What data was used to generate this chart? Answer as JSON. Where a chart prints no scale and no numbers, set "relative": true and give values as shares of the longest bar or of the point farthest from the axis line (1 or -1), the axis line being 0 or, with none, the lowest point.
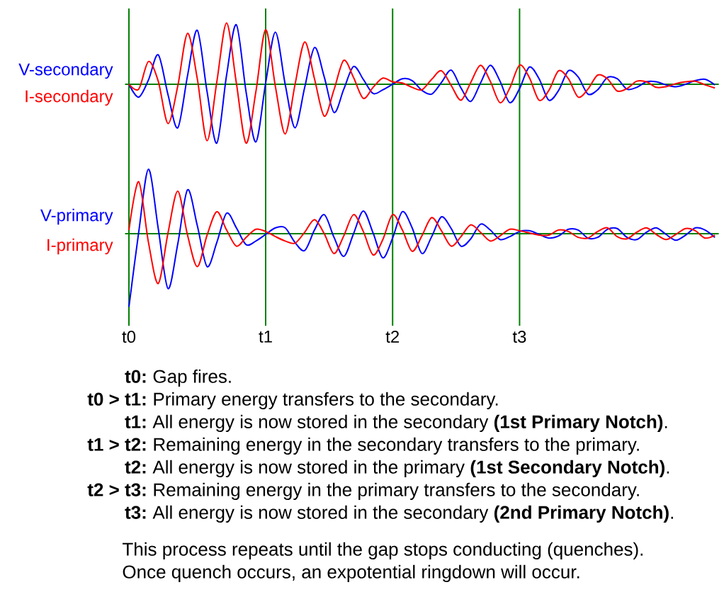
{
  "chart_data": [
    {
      "type": "line",
      "relative": true,
      "tick_labels": false,
      "categories": [
        "t0",
        null,
        null,
        null,
        null,
        null,
        null,
        null,
        null,
        null,
        null,
        null,
        null,
        null,
        "t1",
        null,
        null,
        null,
        null,
        null,
        null,
        null,
        null,
        null,
        null,
        null,
        null,
        "t2",
        null,
        null,
        null,
        null,
        null,
        null,
        null,
        null,
        null,
        null,
        null,
        null,
        "t3",
        null,
        null,
        null,
        null,
        null,
        null,
        null,
        null,
        null,
        null,
        null,
        null,
        null,
        null,
        null,
        null,
        null,
        null,
        null,
        null
      ],
      "series": [
        {
          "name": "V-secondary",
          "color": "#0000ff",
          "values": [
            0,
            -0.21,
            0.07,
            0.48,
            -0.17,
            -0.71,
            0.14,
            0.88,
            -0.12,
            -0.96,
            0.15,
            0.97,
            -0.13,
            -0.94,
            0.02,
            0.85,
            0.0,
            -0.71,
            -0.05,
            0.6,
            0.12,
            -0.46,
            -0.08,
            0.29,
            0.08,
            -0.15,
            -0.09,
            0.0,
            0.09,
            0.06,
            -0.1,
            -0.16,
            0.03,
            0.23,
            -0.06,
            -0.28,
            0.02,
            0.31,
            0.05,
            -0.3,
            -0.07,
            0.28,
            0.09,
            -0.26,
            -0.1,
            0.22,
            0.12,
            -0.16,
            -0.09,
            0.11,
            0.09,
            -0.08,
            -0.05,
            0.04,
            0.04,
            -0.01,
            -0.04,
            0.0,
            0.06,
            0.08,
            -0.01
          ]
        },
        {
          "name": "I-secondary",
          "color": "#ff0000",
          "values": [
            0,
            -0.08,
            0.37,
            0.05,
            -0.64,
            -0.03,
            0.83,
            0.09,
            -0.92,
            0.04,
            1.0,
            0.02,
            -0.96,
            -0.12,
            0.89,
            -0.04,
            -0.81,
            -0.01,
            0.69,
            0.09,
            -0.52,
            -0.09,
            0.39,
            0.11,
            -0.23,
            -0.05,
            0.1,
            0.04,
            0.02,
            -0.05,
            -0.09,
            0.08,
            0.22,
            -0.02,
            -0.26,
            0.03,
            0.31,
            0.05,
            -0.3,
            -0.06,
            0.31,
            0.11,
            -0.26,
            -0.1,
            0.22,
            0.09,
            -0.21,
            -0.08,
            0.15,
            0.09,
            -0.11,
            -0.07,
            0.05,
            0.04,
            -0.05,
            -0.04,
            0.01,
            0.04,
            0.05,
            -0.01,
            -0.06
          ]
        }
      ],
      "ref_lines": [
        {
          "axis": "x",
          "value": "t0",
          "color": "#008000"
        },
        {
          "axis": "x",
          "value": "t1",
          "color": "#008000"
        },
        {
          "axis": "x",
          "value": "t2",
          "color": "#008000"
        },
        {
          "axis": "x",
          "value": "t3",
          "color": "#008000"
        }
      ]
    },
    {
      "type": "line",
      "relative": true,
      "tick_labels": "x",
      "categories": [
        "t0",
        null,
        null,
        null,
        null,
        null,
        null,
        null,
        null,
        null,
        null,
        null,
        null,
        null,
        "t1",
        null,
        null,
        null,
        null,
        null,
        null,
        null,
        null,
        null,
        null,
        null,
        null,
        "t2",
        null,
        null,
        null,
        null,
        null,
        null,
        null,
        null,
        null,
        null,
        null,
        null,
        "t3",
        null,
        null,
        null,
        null,
        null,
        null,
        null,
        null,
        null,
        null,
        null,
        null,
        null,
        null,
        null,
        null,
        null,
        null,
        null,
        null
      ],
      "series": [
        {
          "name": "V-primary",
          "color": "#0000ff",
          "values": [
            -1.0,
            0.02,
            0.88,
            0.07,
            -0.75,
            -0.14,
            0.6,
            0.11,
            -0.45,
            -0.12,
            0.28,
            0.08,
            -0.15,
            -0.1,
            -0.01,
            0.08,
            0.08,
            -0.12,
            -0.23,
            0.05,
            0.26,
            -0.05,
            -0.31,
            0.0,
            0.31,
            0.01,
            -0.33,
            -0.06,
            0.3,
            0.08,
            -0.27,
            -0.04,
            0.23,
            0.07,
            -0.17,
            -0.07,
            0.13,
            0.05,
            -0.08,
            -0.04,
            0.03,
            0.04,
            -0.01,
            -0.06,
            -0.03,
            0.06,
            0.05,
            -0.06,
            -0.05,
            0.06,
            0.07,
            -0.05,
            -0.08,
            0.02,
            0.08,
            -0.01,
            -0.09,
            -0.02,
            0.08,
            0.05,
            -0.05
          ]
        },
        {
          "name": "I-primary",
          "color": "#ff0000",
          "values": [
            0.05,
            0.71,
            -0.12,
            -0.68,
            0.01,
            0.58,
            -0.02,
            -0.45,
            -0.02,
            0.3,
            0.05,
            -0.17,
            -0.05,
            0.06,
            0.03,
            -0.04,
            -0.1,
            -0.13,
            0.02,
            0.19,
            0.0,
            -0.27,
            -0.03,
            0.26,
            0.03,
            -0.29,
            -0.08,
            0.26,
            0.05,
            -0.24,
            -0.03,
            0.22,
            0.04,
            -0.17,
            -0.04,
            0.12,
            0.02,
            -0.1,
            -0.03,
            0.06,
            0.04,
            0.01,
            -0.02,
            -0.02,
            0.05,
            0.03,
            -0.05,
            -0.06,
            0.03,
            0.08,
            -0.04,
            -0.07,
            0.02,
            0.08,
            -0.01,
            -0.08,
            -0.01,
            0.07,
            0.04,
            -0.06,
            -0.02
          ]
        }
      ],
      "ref_lines": [
        {
          "axis": "x",
          "value": "t0",
          "color": "#008000"
        },
        {
          "axis": "x",
          "value": "t1",
          "color": "#008000"
        },
        {
          "axis": "x",
          "value": "t2",
          "color": "#008000"
        },
        {
          "axis": "x",
          "value": "t3",
          "color": "#008000"
        }
      ]
    },
    {
      "type": "other",
      "annotations": [
        "**t0:** Gap fires.",
        "**t0 > t1:** Primary energy transfers to the secondary.",
        "**t1:** All energy is now stored in the secondary **(1st Primary Notch)**.",
        "**t1 > t2:** Remaining energy in the secondary transfers to the primary.",
        "**t2:** All energy is now stored in the primary **(1st Secondary Notch)**.",
        "**t2 > t3:** Remaining energy in the primary transfers to the secondary.",
        "**t3:** All energy is now stored in the secondary **(2nd Primary Notch)**.",
        "This process repeats until the gap stops conducting (quenches).",
        "Once quench occurs, an expotential ringdown will occur."
      ]
    }
  ]
}
